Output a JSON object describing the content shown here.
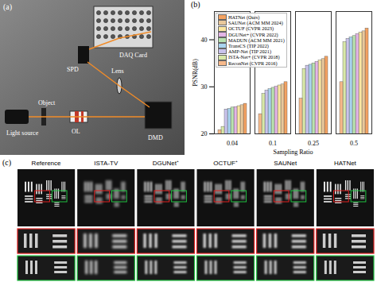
{
  "panel_labels": [
    "(a)",
    "(b)",
    "(c)"
  ],
  "panel_a": {
    "components": [
      "Light source",
      "Object",
      "OL",
      "Lens",
      "DMD",
      "SPD",
      "DAQ Card"
    ]
  },
  "chart_data": {
    "type": "bar",
    "x_label": "Sampling Ratio",
    "y_label": "PSNR(dB)",
    "categories": [
      "0.04",
      "0.1",
      "0.25",
      "0.5"
    ],
    "ylim": [
      20,
      46
    ],
    "yticks": [
      20,
      30,
      40
    ],
    "legend": "top-left",
    "series": [
      {
        "name": "HATNet (Ours)",
        "color": "#f4a261",
        "values": [
          26.4,
          31.0,
          36.4,
          42.4
        ]
      },
      {
        "name": "SAUNet (ACM MM 2024)",
        "color": "#e9c89b",
        "values": [
          26.1,
          30.5,
          35.9,
          41.8
        ]
      },
      {
        "name": "OCTUF (CVPR 2023)",
        "color": "#fbe7a1",
        "values": [
          25.9,
          30.3,
          35.6,
          41.5
        ]
      },
      {
        "name": "DGUNet+ (CVPR 2022)",
        "color": "#e3b5e6",
        "values": [
          25.7,
          30.0,
          35.3,
          41.2
        ]
      },
      {
        "name": "MADUN (ACM MM 2021)",
        "color": "#b9e3b0",
        "values": [
          25.6,
          29.8,
          35.0,
          40.8
        ]
      },
      {
        "name": "TransCS (TIP 2022)",
        "color": "#a9d4ef",
        "values": [
          25.3,
          29.5,
          34.7,
          40.5
        ]
      },
      {
        "name": "AMP-Net (TIP 2021)",
        "color": "#c9c3ec",
        "values": [
          25.2,
          29.2,
          34.5,
          40.2
        ]
      },
      {
        "name": "ISTA-Net+ (CVPR 2018)",
        "color": "#d8e8a8",
        "values": [
          21.5,
          28.5,
          33.8,
          39.5
        ]
      },
      {
        "name": "ReconNet (CVPR 2016)",
        "color": "#f7b98a",
        "values": [
          20.8,
          24.2,
          27.5,
          31.0
        ]
      }
    ]
  },
  "panel_c": {
    "columns": [
      "Reference",
      "ISTA-TV",
      "DGUNet⁺",
      "OCTUF⁺",
      "SAUNet",
      "HATNet"
    ]
  }
}
